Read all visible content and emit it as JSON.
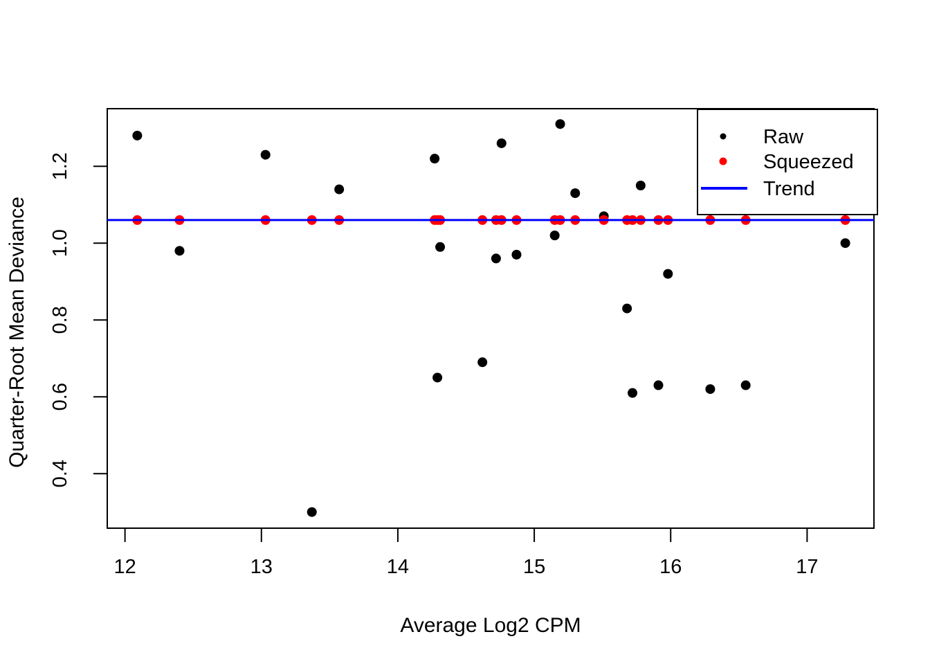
{
  "figure": {
    "background": "#ffffff",
    "plot_border_color": "#000000"
  },
  "chart_data": {
    "type": "scatter",
    "title": "",
    "xlabel": "Average Log2 CPM",
    "ylabel": "Quarter-Root Mean Deviance",
    "xlim": [
      11.87,
      17.49
    ],
    "ylim": [
      0.258,
      1.35
    ],
    "x_ticks": [
      12,
      13,
      14,
      15,
      16,
      17
    ],
    "y_ticks": [
      0.4,
      0.6,
      0.8,
      1.0,
      1.2
    ],
    "y_tick_labels": [
      "0.4",
      "0.6",
      "0.8",
      "1.0",
      "1.2"
    ],
    "grid": false,
    "legend_position": "topright",
    "series": [
      {
        "name": "Raw",
        "type": "points",
        "color": "#000000",
        "marker": "circle",
        "points": [
          [
            12.09,
            1.28
          ],
          [
            12.4,
            0.98
          ],
          [
            13.03,
            1.23
          ],
          [
            13.37,
            0.3
          ],
          [
            13.57,
            1.14
          ],
          [
            14.27,
            1.22
          ],
          [
            14.29,
            0.65
          ],
          [
            14.31,
            0.99
          ],
          [
            14.62,
            0.69
          ],
          [
            14.72,
            0.96
          ],
          [
            14.76,
            1.26
          ],
          [
            14.87,
            0.97
          ],
          [
            15.15,
            1.02
          ],
          [
            15.19,
            1.31
          ],
          [
            15.3,
            1.13
          ],
          [
            15.51,
            1.07
          ],
          [
            15.68,
            0.83
          ],
          [
            15.72,
            0.61
          ],
          [
            15.78,
            1.15
          ],
          [
            15.91,
            0.63
          ],
          [
            15.98,
            0.92
          ],
          [
            16.29,
            0.62
          ],
          [
            16.55,
            0.63
          ],
          [
            17.28,
            1.0
          ]
        ]
      },
      {
        "name": "Squeezed",
        "type": "points",
        "color": "#ff0000",
        "marker": "circle",
        "y_constant": 1.06,
        "x": [
          12.09,
          12.4,
          13.03,
          13.37,
          13.57,
          14.27,
          14.29,
          14.31,
          14.62,
          14.72,
          14.76,
          14.87,
          15.15,
          15.19,
          15.3,
          15.51,
          15.68,
          15.72,
          15.78,
          15.91,
          15.98,
          16.29,
          16.55,
          17.28
        ]
      },
      {
        "name": "Trend",
        "type": "hline",
        "color": "#0000ff",
        "y": 1.06
      }
    ],
    "legend": [
      {
        "label": "Raw",
        "marker": "dot",
        "color": "#000000"
      },
      {
        "label": "Squeezed",
        "marker": "dot",
        "color": "#ff0000"
      },
      {
        "label": "Trend",
        "marker": "line",
        "color": "#0000ff"
      }
    ]
  }
}
